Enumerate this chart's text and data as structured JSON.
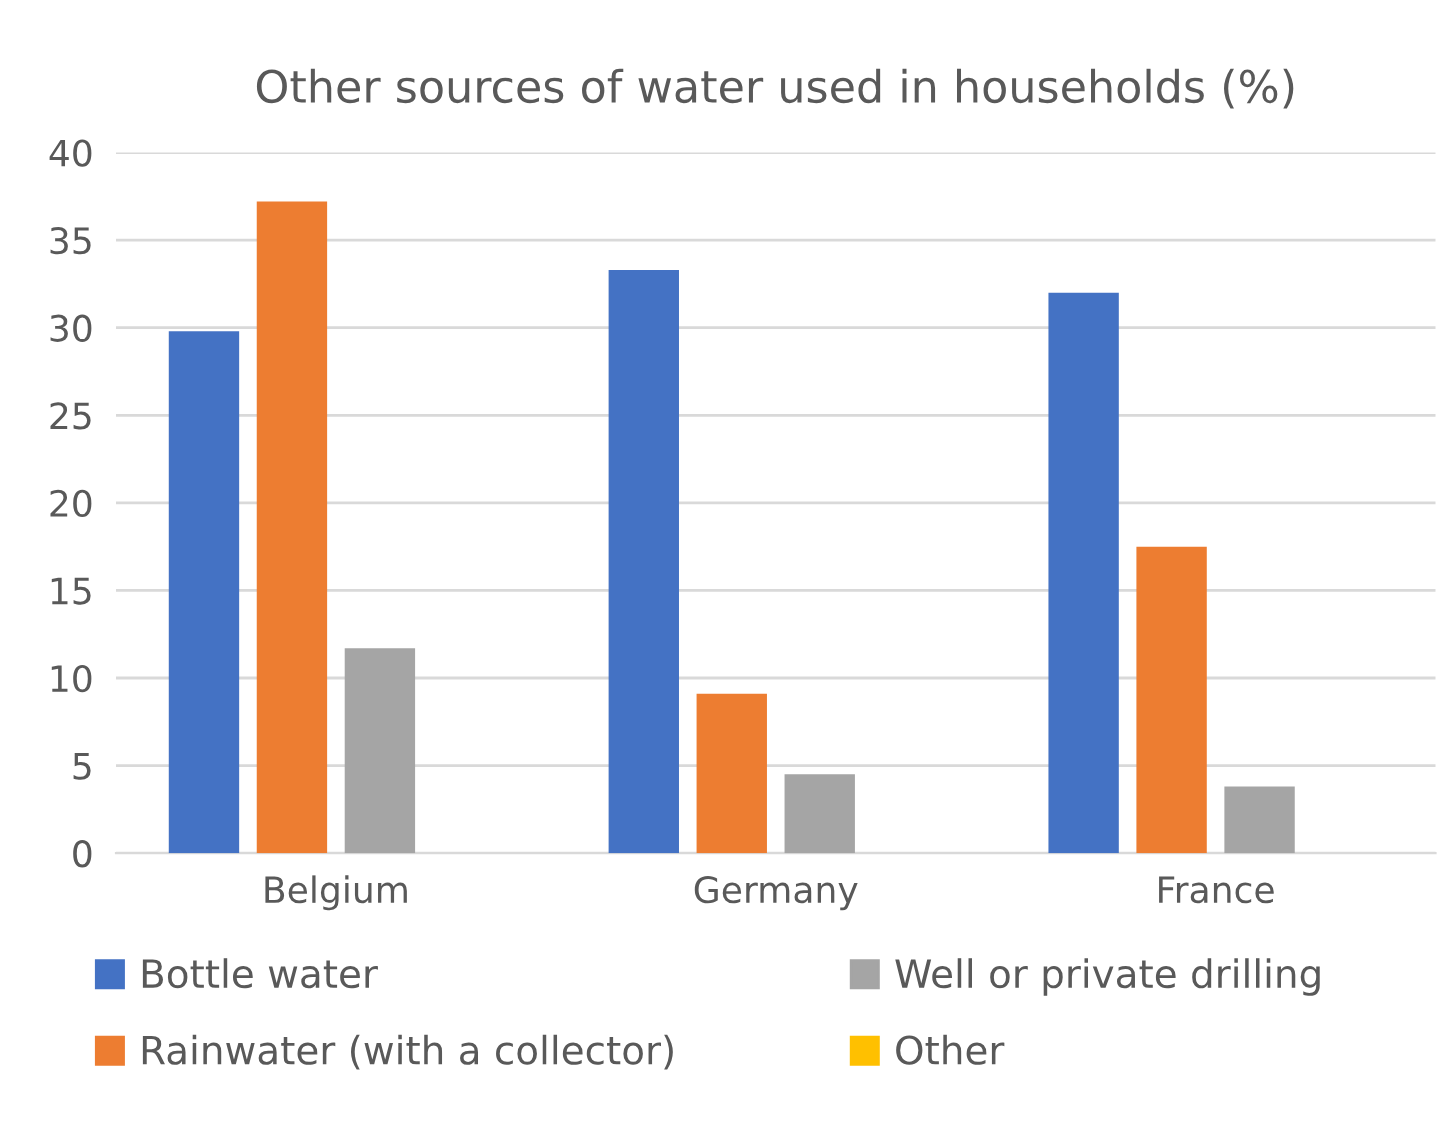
{
  "chart_data": {
    "type": "bar",
    "title": "Other sources of water used in households (%)",
    "categories": [
      "Belgium",
      "Germany",
      "France"
    ],
    "series": [
      {
        "name": "Bottle water",
        "color": "#4472c4",
        "values": [
          29.8,
          33.3,
          32.0
        ]
      },
      {
        "name": "Rainwater (with a collector)",
        "color": "#ed7d31",
        "values": [
          37.2,
          9.1,
          17.5
        ]
      },
      {
        "name": "Well or private drilling",
        "color": "#a5a5a5",
        "values": [
          11.7,
          4.5,
          3.8
        ]
      },
      {
        "name": "Other",
        "color": "#ffc000",
        "values": [
          0,
          0,
          0
        ]
      }
    ],
    "ylim": [
      0,
      40
    ],
    "yticks": [
      0,
      5,
      10,
      15,
      20,
      25,
      30,
      35,
      40
    ],
    "grid": "y",
    "legend": "bottom"
  }
}
